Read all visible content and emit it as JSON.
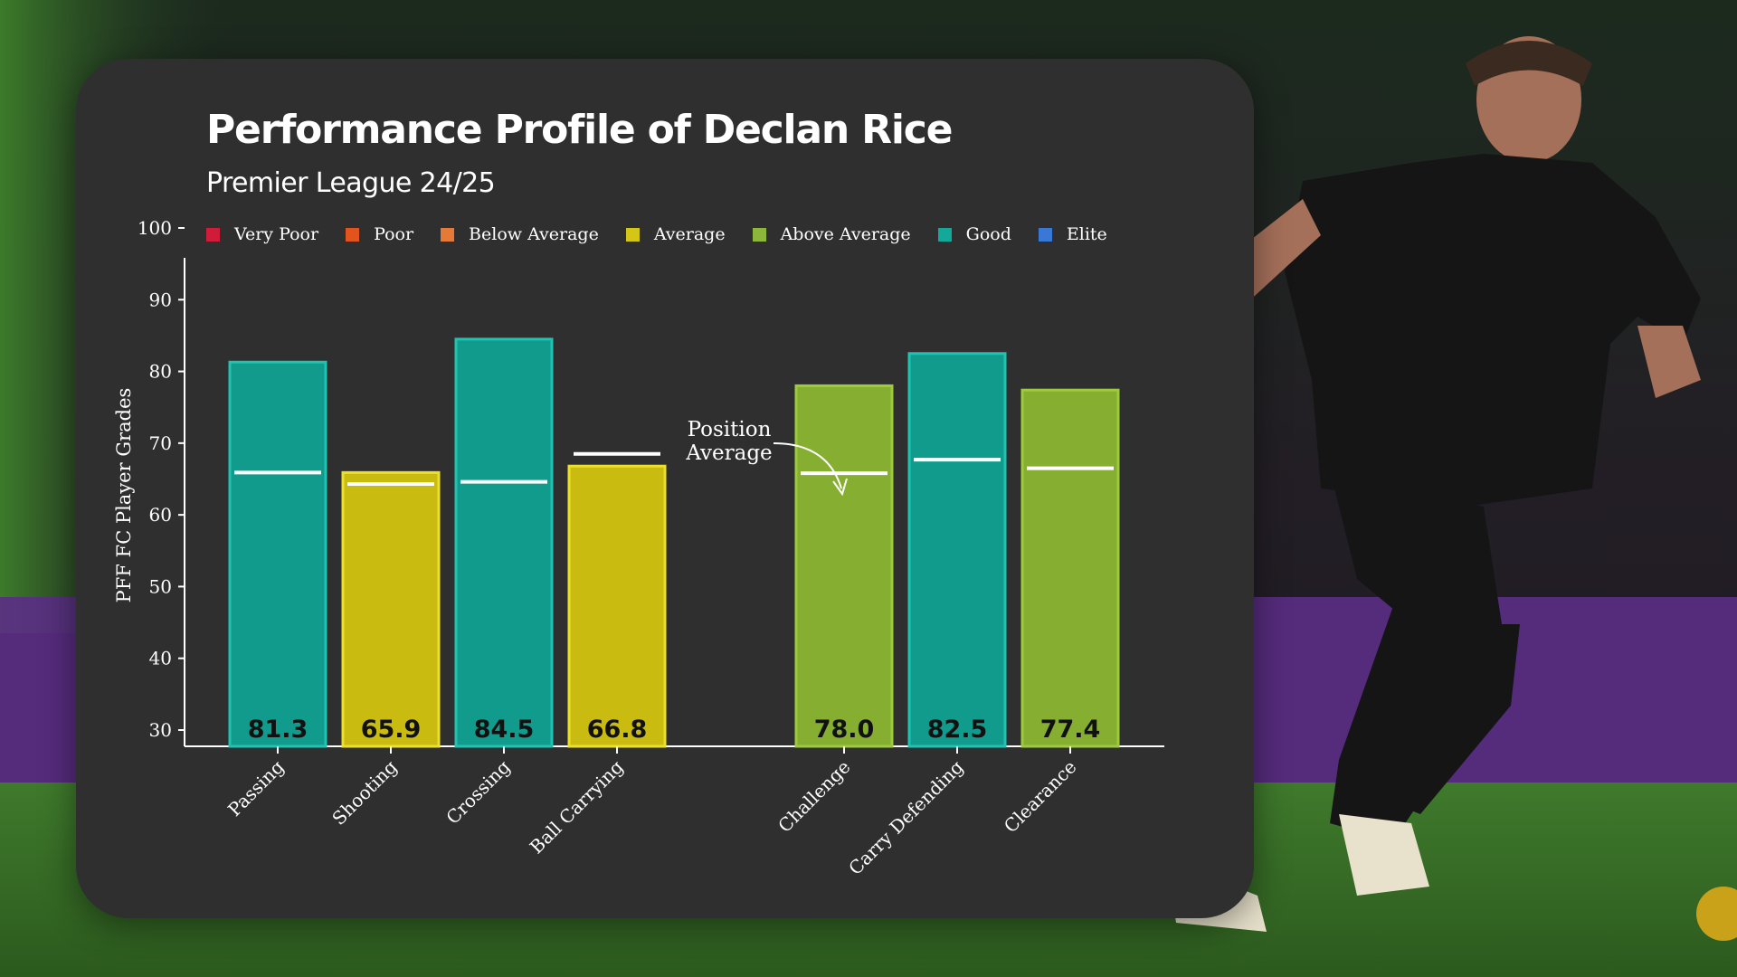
{
  "chart_data": {
    "type": "bar",
    "title": "Performance Profile of Declan Rice",
    "subtitle": "Premier League 24/25",
    "ylabel": "PFF FC Player Grades",
    "ylim": [
      30,
      100
    ],
    "yticks": [
      30,
      40,
      50,
      60,
      70,
      80,
      90,
      100
    ],
    "grid": false,
    "legend": {
      "placement": "top",
      "entries": [
        {
          "label": "Very Poor",
          "color": "#d01c3a"
        },
        {
          "label": "Poor",
          "color": "#e2541e"
        },
        {
          "label": "Below Average",
          "color": "#e57a37"
        },
        {
          "label": "Average",
          "color": "#d4c617"
        },
        {
          "label": "Above Average",
          "color": "#8db73a"
        },
        {
          "label": "Good",
          "color": "#12a99a"
        },
        {
          "label": "Elite",
          "color": "#3a78d8"
        }
      ]
    },
    "categories": [
      "Passing",
      "Shooting",
      "Crossing",
      "Ball Carrying",
      "Challenge",
      "Carry Defending",
      "Clearance"
    ],
    "values": [
      81.3,
      65.9,
      84.5,
      66.8,
      78.0,
      82.5,
      77.4
    ],
    "value_labels": [
      "81.3",
      "65.9",
      "84.5",
      "66.8",
      "78.0",
      "82.5",
      "77.4"
    ],
    "grade_bands": [
      "Good",
      "Average",
      "Good",
      "Average",
      "Above Average",
      "Good",
      "Above Average"
    ],
    "position_average": [
      65.9,
      64.3,
      64.6,
      68.5,
      65.8,
      67.7,
      66.5
    ],
    "annotation": "Position\nAverage"
  },
  "band_colors": {
    "Very Poor": {
      "fill": "#b8182f",
      "stroke": "#d01c3a"
    },
    "Poor": {
      "fill": "#c9471a",
      "stroke": "#e2541e"
    },
    "Below Average": {
      "fill": "#cf6a2e",
      "stroke": "#e57a37"
    },
    "Average": {
      "fill": "#c9bb10",
      "stroke": "#ece02a"
    },
    "Above Average": {
      "fill": "#86ae31",
      "stroke": "#9ccb3c"
    },
    "Good": {
      "fill": "#109b8d",
      "stroke": "#1ec3b2"
    },
    "Elite": {
      "fill": "#2f66c0",
      "stroke": "#4a8cf0"
    }
  }
}
